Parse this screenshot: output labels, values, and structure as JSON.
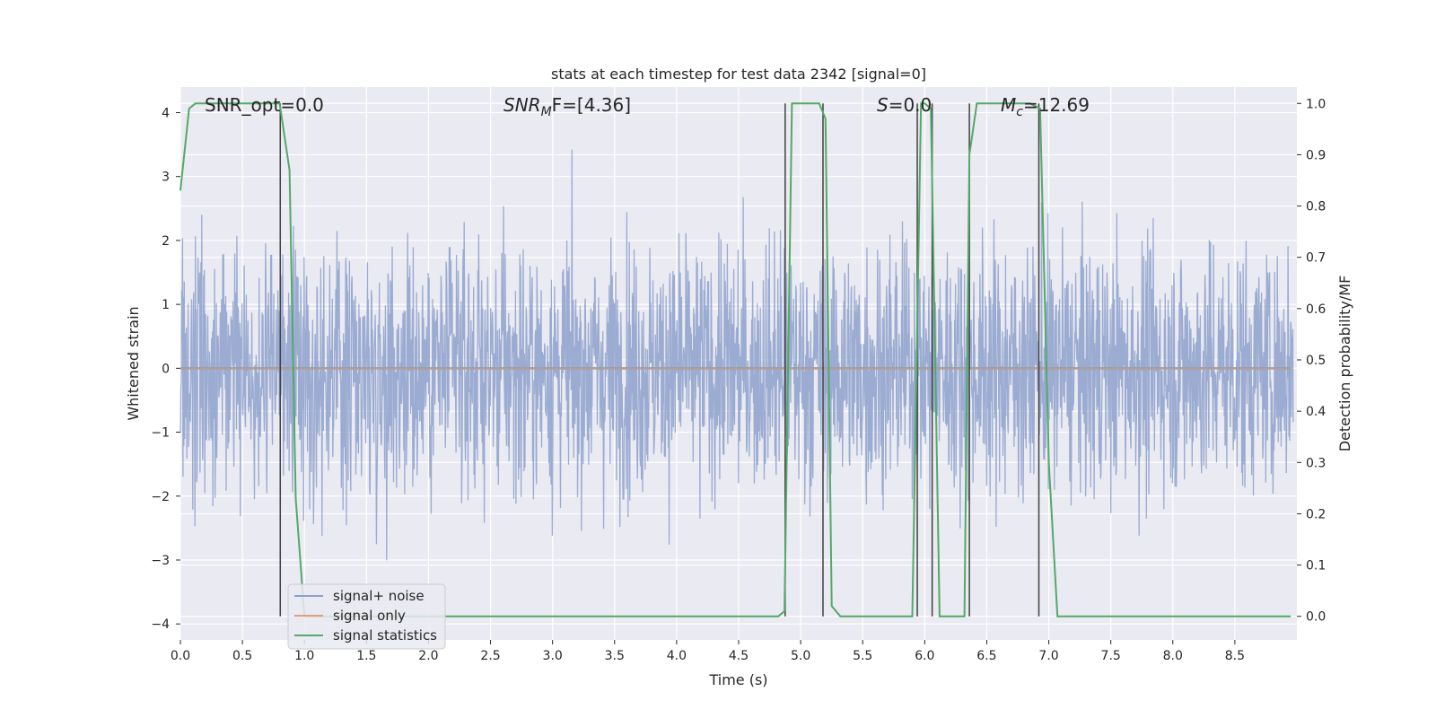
{
  "chart_data": {
    "type": "line",
    "title": "stats at each timestep for test data 2342 [signal=0]",
    "xlabel": "Time (s)",
    "ylabel": "Whitened strain",
    "y2label": "Detection probability/MF",
    "xlim": [
      0.0,
      9.0
    ],
    "ylim": [
      -4.25,
      4.4
    ],
    "y2lim": [
      -0.046,
      1.032
    ],
    "xticks": [
      0.0,
      0.5,
      1.0,
      1.5,
      2.0,
      2.5,
      3.0,
      3.5,
      4.0,
      4.5,
      5.0,
      5.5,
      6.0,
      6.5,
      7.0,
      7.5,
      8.0,
      8.5
    ],
    "xtick_labels": [
      "0.0",
      "0.5",
      "1.0",
      "1.5",
      "2.0",
      "2.5",
      "3.0",
      "3.5",
      "4.0",
      "4.5",
      "5.0",
      "5.5",
      "6.0",
      "6.5",
      "7.0",
      "7.5",
      "8.0",
      "8.5"
    ],
    "yticks": [
      -4,
      -3,
      -2,
      -1,
      0,
      1,
      2,
      3,
      4
    ],
    "ytick_labels": [
      "−4",
      "−3",
      "−2",
      "−1",
      "0",
      "1",
      "2",
      "3",
      "4"
    ],
    "y2ticks": [
      0.0,
      0.1,
      0.2,
      0.3,
      0.4,
      0.5,
      0.6,
      0.7,
      0.8,
      0.9,
      1.0
    ],
    "y2tick_labels": [
      "0.0",
      "0.1",
      "0.2",
      "0.3",
      "0.4",
      "0.5",
      "0.6",
      "0.7",
      "0.8",
      "0.9",
      "1.0"
    ],
    "grid": true,
    "legend_position": "lower-left",
    "annotations": {
      "snr_opt": "SNR_opt=0.0",
      "snr_mf_sym": "SNR",
      "snr_mf_sub": "M",
      "snr_mf_rest": "F=[4.36]",
      "s_sym": "S",
      "s_rest": "=0.0",
      "mc_sym": "M",
      "mc_sub": "c",
      "mc_rest": "=12.69"
    },
    "series": [
      {
        "name": "signal+ noise",
        "color": "#8da0cb",
        "noise_envelope": {
          "typical_abs": 1.5,
          "max": 3.45,
          "min": -3.9
        }
      },
      {
        "name": "signal only",
        "color": "#e1a07a",
        "values": "0 at all times"
      },
      {
        "name": "signal statistics",
        "color": "#55a868",
        "axis": "right",
        "x": [
          0.0,
          0.07,
          0.12,
          0.5,
          0.8,
          0.88,
          0.93,
          1.0,
          4.82,
          4.87,
          4.93,
          5.15,
          5.2,
          5.25,
          5.32,
          5.9,
          5.97,
          6.0,
          6.05,
          6.12,
          6.2,
          6.32,
          6.36,
          6.42,
          6.6,
          6.85,
          6.93,
          7.0,
          7.07,
          8.95
        ],
        "y": [
          0.83,
          0.99,
          1.0,
          1.0,
          1.0,
          0.87,
          0.23,
          0.0,
          0.0,
          0.01,
          1.0,
          1.0,
          0.97,
          0.02,
          0.0,
          0.0,
          1.0,
          1.0,
          0.99,
          0.0,
          0.0,
          0.0,
          0.9,
          1.0,
          1.0,
          1.0,
          0.99,
          0.3,
          0.0,
          0.0
        ]
      }
    ],
    "vertical_markers": [
      {
        "x": 0.805,
        "y_top": 1.0,
        "y_bottom": 0.0
      },
      {
        "x": 4.875,
        "y_top": 1.0,
        "y_bottom": 0.0
      },
      {
        "x": 5.18,
        "y_top": 1.0,
        "y_bottom": 0.0
      },
      {
        "x": 5.94,
        "y_top": 1.0,
        "y_bottom": 0.0
      },
      {
        "x": 6.06,
        "y_top": 1.0,
        "y_bottom": 0.0
      },
      {
        "x": 6.36,
        "y_top": 1.0,
        "y_bottom": 0.0
      },
      {
        "x": 6.92,
        "y_top": 1.0,
        "y_bottom": 0.0
      }
    ],
    "colors": {
      "background": "#eaeaf2",
      "grid": "#ffffff",
      "marker": "#404040"
    }
  }
}
